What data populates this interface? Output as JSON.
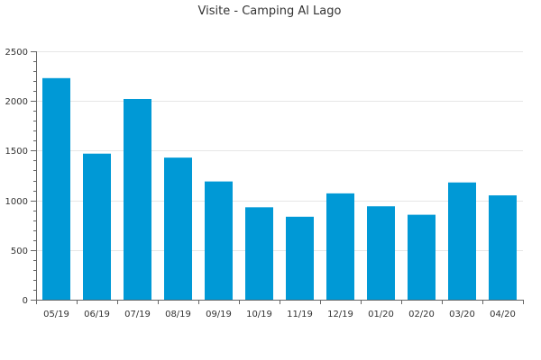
{
  "chart_data": {
    "type": "bar",
    "title": "Visite - Camping Al Lago",
    "xlabel": "",
    "ylabel": "",
    "categories": [
      "05/19",
      "06/19",
      "07/19",
      "08/19",
      "09/19",
      "10/19",
      "11/19",
      "12/19",
      "01/20",
      "02/20",
      "03/20",
      "04/20"
    ],
    "values": [
      2230,
      1470,
      2020,
      1430,
      1190,
      930,
      835,
      1070,
      940,
      855,
      1180,
      1050
    ],
    "ylim": [
      0,
      2500
    ],
    "yticks": [
      0,
      500,
      1000,
      1500,
      2000,
      2500
    ],
    "grid": true,
    "legend": "none",
    "bar_color": "#0099d6"
  }
}
